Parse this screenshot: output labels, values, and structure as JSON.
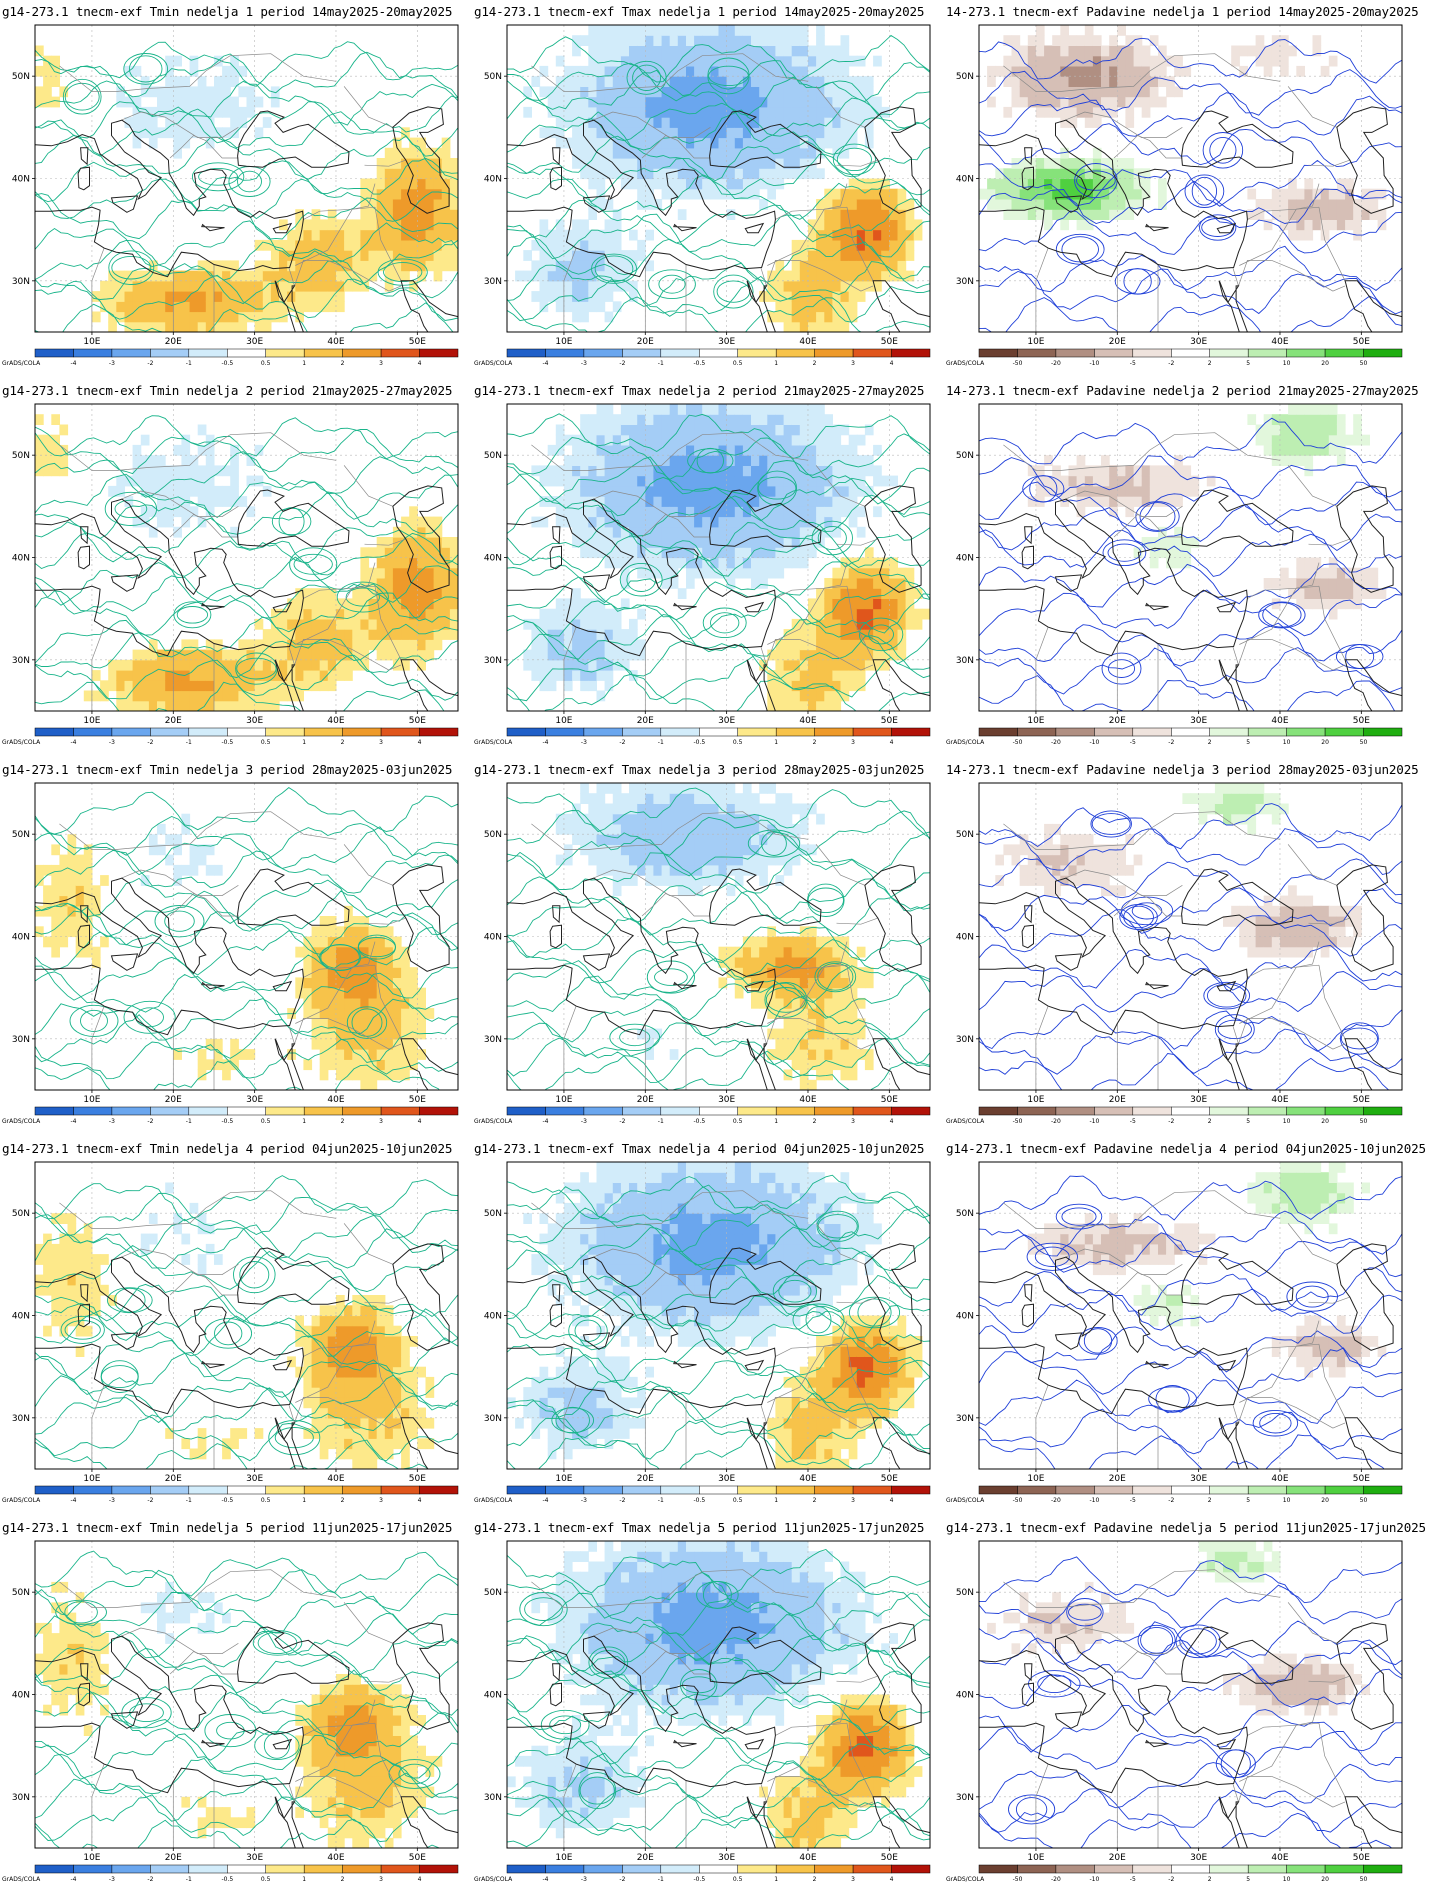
{
  "rows": [
    {
      "panels": [
        {
          "title": "g14-273.1 tnecm-exf Tmin nedelja 1 period 14may2025-20may2025",
          "type": "temp",
          "variant": "tmin"
        },
        {
          "title": "g14-273.1 tnecm-exf Tmax nedelja 1 period 14may2025-20may2025",
          "type": "temp",
          "variant": "tmax"
        },
        {
          "title": "14-273.1 tnecm-exf Padavine nedelja 1 period 14may2025-20may2025",
          "type": "precip",
          "variant": "wet"
        }
      ]
    },
    {
      "panels": [
        {
          "title": "g14-273.1 tnecm-exf Tmin nedelja 2 period 21may2025-27may2025",
          "type": "temp",
          "variant": "tmin"
        },
        {
          "title": "g14-273.1 tnecm-exf Tmax nedelja 2 period 21may2025-27may2025",
          "type": "temp",
          "variant": "tmax"
        },
        {
          "title": "14-273.1 tnecm-exf Padavine nedelja 2 period 21may2025-27may2025",
          "type": "precip",
          "variant": "mixed"
        }
      ]
    },
    {
      "panels": [
        {
          "title": "g14-273.1 tnecm-exf Tmin nedelja 3 period 28may2025-03jun2025",
          "type": "temp",
          "variant": "tmin3"
        },
        {
          "title": "g14-273.1 tnecm-exf Tmax nedelja 3 period 28may2025-03jun2025",
          "type": "temp",
          "variant": "tmax3"
        },
        {
          "title": "14-273.1 tnecm-exf Padavine nedelja 3 period 28may2025-03jun2025",
          "type": "precip",
          "variant": "dry"
        }
      ]
    },
    {
      "panels": [
        {
          "title": "g14-273.1 tnecm-exf Tmin nedelja 4 period 04jun2025-10jun2025",
          "type": "temp",
          "variant": "tmin3"
        },
        {
          "title": "g14-273.1 tnecm-exf Tmax nedelja 4 period 04jun2025-10jun2025",
          "type": "temp",
          "variant": "tmax"
        },
        {
          "title": "g14-273.1 tnecm-exf Padavine nedelja 4 period 04jun2025-10jun2025",
          "type": "precip",
          "variant": "mixed"
        }
      ]
    },
    {
      "panels": [
        {
          "title": "g14-273.1 tnecm-exf Tmin nedelja 5 period 11jun2025-17jun2025",
          "type": "temp",
          "variant": "tmin3"
        },
        {
          "title": "g14-273.1 tnecm-exf Tmax nedelja 5 period 11jun2025-17jun2025",
          "type": "temp",
          "variant": "tmax"
        },
        {
          "title": "g14-273.1 tnecm-exf Padavine nedelja 5 period 11jun2025-17jun2025",
          "type": "precip",
          "variant": "dry"
        }
      ]
    }
  ],
  "axes": {
    "x_ticks": [
      "10E",
      "20E",
      "30E",
      "40E",
      "50E"
    ],
    "y_ticks": [
      "50N",
      "40N",
      "30N"
    ]
  },
  "colorbars": {
    "credit": "GrADS/COLA",
    "temp": {
      "labels": [
        "-4",
        "-3",
        "-2",
        "-1",
        "-0.5",
        "0.5",
        "1",
        "2",
        "3",
        "4"
      ],
      "colors": [
        "#1f5fc8",
        "#3a7fe0",
        "#6aa6ee",
        "#a4cdf6",
        "#d2ecfa",
        "#ffffff",
        "#fde98a",
        "#f7c34a",
        "#ee9a2a",
        "#e0561c",
        "#b21208"
      ]
    },
    "precip": {
      "labels": [
        "-50",
        "-20",
        "-10",
        "-5",
        "-2",
        "2",
        "5",
        "10",
        "20",
        "50"
      ],
      "colors": [
        "#6b3f30",
        "#8d6454",
        "#b08f82",
        "#d6bfb6",
        "#efe3dd",
        "#ffffff",
        "#e2f7dc",
        "#bdeeb2",
        "#86e27a",
        "#4fd040",
        "#1fae10"
      ]
    }
  },
  "colors": {
    "temp_contour": "#19b48a",
    "precip_contour": "#1f3fd8",
    "coast": "#222222",
    "border": "#8a8a8a",
    "grid": "#b8b8b8"
  }
}
